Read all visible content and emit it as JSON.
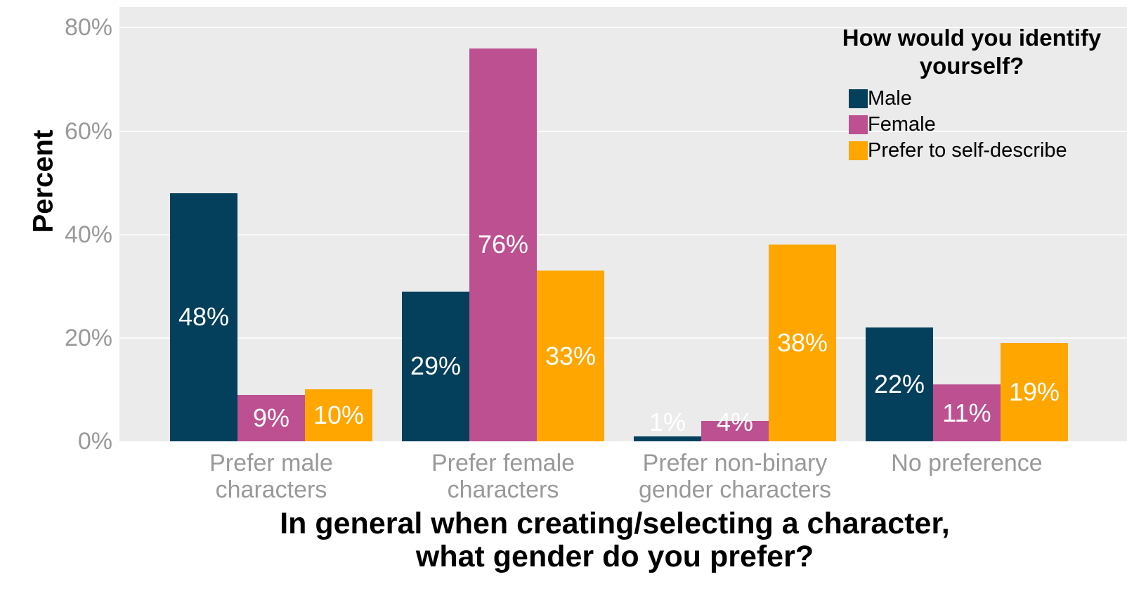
{
  "chart_data": {
    "type": "bar",
    "title": "",
    "xlabel": "In general when creating/selecting a character,\nwhat gender do you prefer?",
    "ylabel": "Percent",
    "categories": [
      "Prefer male\ncharacters",
      "Prefer female\ncharacters",
      "Prefer non-binary\ngender characters",
      "No preference"
    ],
    "series": [
      {
        "name": "Male",
        "color": "#043f5c",
        "values": [
          48,
          29,
          1,
          22
        ]
      },
      {
        "name": "Female",
        "color": "#bc5090",
        "values": [
          9,
          76,
          4,
          11
        ]
      },
      {
        "name": "Prefer to self-describe",
        "color": "#ffa600",
        "values": [
          10,
          33,
          38,
          19
        ]
      }
    ],
    "value_labels": [
      [
        "48%",
        "29%",
        "1%",
        "22%"
      ],
      [
        "9%",
        "76%",
        "4%",
        "11%"
      ],
      [
        "10%",
        "33%",
        "38%",
        "19%"
      ]
    ],
    "yticks": [
      0,
      20,
      40,
      60,
      80
    ],
    "ytick_labels": [
      "0%",
      "20%",
      "40%",
      "60%",
      "80%"
    ],
    "ylim": [
      0,
      84
    ],
    "grid": true,
    "legend_title": "How would you identify\nyourself?",
    "legend_position": "top-right",
    "colors": {
      "panel_bg": "#ebebeb",
      "grid_color": "#fafafa",
      "axis_text": "#999999",
      "value_label": "#ffffff",
      "title_text": "#000000"
    }
  }
}
